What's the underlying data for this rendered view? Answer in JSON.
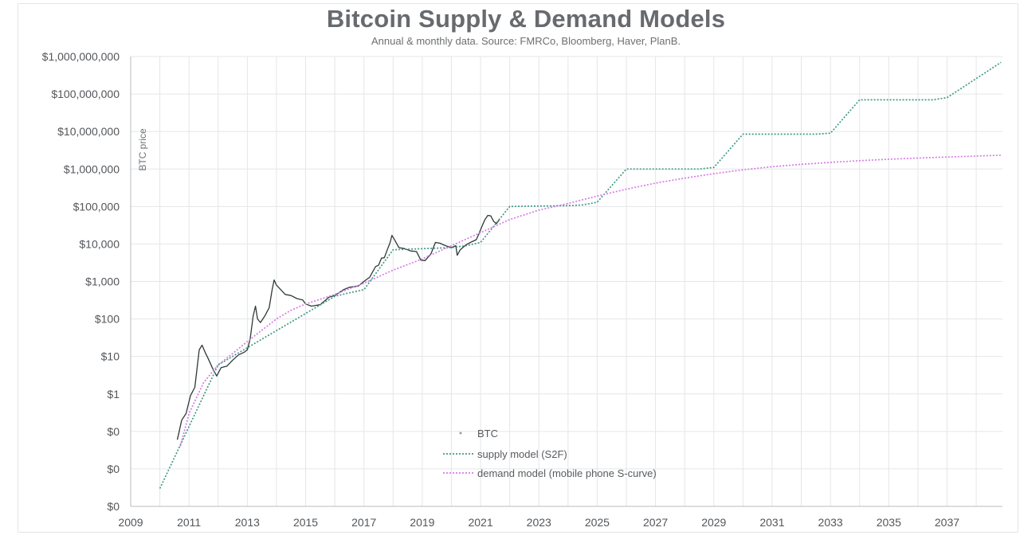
{
  "chart_data": {
    "type": "line",
    "title": "Bitcoin Supply & Demand Models",
    "subtitle": "Annual & monthly data.  Source: FMRCo, Bloomberg, Haver, PlanB.",
    "ylabel": "BTC price",
    "xlabel": "",
    "yscale": "log",
    "xlim": [
      2009,
      2038.9
    ],
    "ylim": [
      0.001,
      1000000000
    ],
    "grid": true,
    "legend_position": "lower-left inside plot",
    "x_ticks": [
      "2009",
      "2011",
      "2013",
      "2015",
      "2017",
      "2019",
      "2021",
      "2023",
      "2025",
      "2027",
      "2029",
      "2031",
      "2033",
      "2035",
      "2037"
    ],
    "y_ticks": [
      {
        "value": 0.001,
        "label": "$0"
      },
      {
        "value": 0.01,
        "label": "$0"
      },
      {
        "value": 0.1,
        "label": "$0"
      },
      {
        "value": 1,
        "label": "$1"
      },
      {
        "value": 10,
        "label": "$10"
      },
      {
        "value": 100,
        "label": "$100"
      },
      {
        "value": 1000,
        "label": "$1,000"
      },
      {
        "value": 10000,
        "label": "$10,000"
      },
      {
        "value": 100000,
        "label": "$100,000"
      },
      {
        "value": 1000000,
        "label": "$1,000,000"
      },
      {
        "value": 10000000,
        "label": "$10,000,000"
      },
      {
        "value": 100000000,
        "label": "$100,000,000"
      },
      {
        "value": 1000000000,
        "label": "$1,000,000,000"
      }
    ],
    "series": [
      {
        "name": "BTC",
        "color": "#2f3a37",
        "style": "solid",
        "x": [
          2010.6,
          2010.75,
          2010.9,
          2011.05,
          2011.2,
          2011.35,
          2011.45,
          2011.55,
          2011.65,
          2011.8,
          2011.95,
          2012.1,
          2012.3,
          2012.5,
          2012.7,
          2012.9,
          2013.0,
          2013.1,
          2013.2,
          2013.28,
          2013.35,
          2013.45,
          2013.6,
          2013.75,
          2013.85,
          2013.92,
          2014.0,
          2014.15,
          2014.3,
          2014.5,
          2014.7,
          2014.9,
          2015.0,
          2015.2,
          2015.5,
          2015.8,
          2016.0,
          2016.3,
          2016.5,
          2016.8,
          2017.0,
          2017.2,
          2017.4,
          2017.5,
          2017.6,
          2017.7,
          2017.8,
          2017.9,
          2017.96,
          2018.05,
          2018.2,
          2018.4,
          2018.6,
          2018.8,
          2018.95,
          2019.1,
          2019.3,
          2019.45,
          2019.6,
          2019.8,
          2020.0,
          2020.15,
          2020.2,
          2020.3,
          2020.5,
          2020.7,
          2020.85,
          2020.95,
          2021.05,
          2021.15,
          2021.25,
          2021.35,
          2021.45,
          2021.55,
          2021.65
        ],
        "y": [
          0.06,
          0.2,
          0.3,
          0.9,
          1.5,
          15,
          20,
          13,
          9,
          5,
          3,
          5,
          5.5,
          8,
          11,
          13,
          15,
          30,
          120,
          220,
          100,
          80,
          120,
          200,
          600,
          1100,
          800,
          600,
          450,
          420,
          350,
          320,
          250,
          220,
          240,
          380,
          420,
          600,
          700,
          750,
          1000,
          1300,
          2500,
          2700,
          4200,
          4300,
          7000,
          11000,
          17000,
          13000,
          8000,
          7500,
          6500,
          6300,
          3700,
          3600,
          5500,
          11000,
          10500,
          9000,
          8000,
          9000,
          5000,
          7000,
          9500,
          11500,
          13000,
          19000,
          30000,
          45000,
          58000,
          56000,
          40000,
          35000,
          45000
        ]
      },
      {
        "name": "supply model (S2F)",
        "color": "#3f9a86",
        "style": "dotted",
        "x": [
          2010,
          2012,
          2012.01,
          2016,
          2016.5,
          2017,
          2018,
          2020,
          2020.5,
          2021,
          2022,
          2024,
          2024.5,
          2025,
          2026,
          2028,
          2028.5,
          2029,
          2030,
          2032,
          2032.5,
          2033,
          2034,
          2036,
          2036.5,
          2037,
          2038.85
        ],
        "y": [
          0.003,
          6,
          6,
          400,
          500,
          600,
          7000,
          8000,
          9000,
          11000,
          100000,
          105000,
          110000,
          130000,
          1000000,
          1000000,
          1000000,
          1100000,
          8500000,
          8500000,
          8500000,
          9000000,
          70000000,
          70000000,
          70000000,
          80000000,
          700000000
        ]
      },
      {
        "name": "demand model (mobile phone S-curve)",
        "color": "#d77be6",
        "style": "dotted",
        "x": [
          2010.7,
          2011,
          2011.5,
          2012,
          2012.5,
          2013,
          2013.5,
          2014,
          2014.5,
          2015,
          2016,
          2017,
          2018,
          2019,
          2020,
          2021,
          2022,
          2023,
          2024,
          2025,
          2026,
          2027,
          2028,
          2029,
          2030,
          2031,
          2032,
          2033,
          2034,
          2035,
          2036,
          2037,
          2038,
          2038.85
        ],
        "y": [
          0.04,
          0.3,
          2,
          6,
          12,
          25,
          50,
          100,
          170,
          250,
          450,
          900,
          2000,
          4000,
          9000,
          20000,
          45000,
          80000,
          120000,
          190000,
          290000,
          420000,
          570000,
          750000,
          950000,
          1150000,
          1330000,
          1500000,
          1670000,
          1820000,
          1960000,
          2090000,
          2210000,
          2320000
        ]
      }
    ]
  }
}
